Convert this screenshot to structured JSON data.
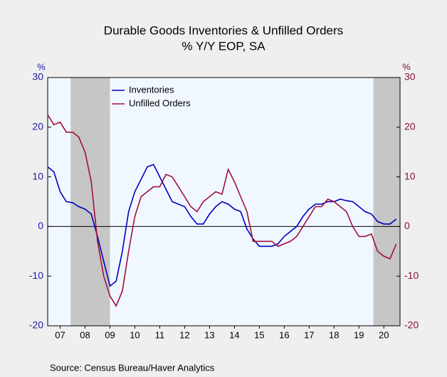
{
  "chart_data": {
    "type": "line",
    "title": "Durable Goods Inventories & Unfilled Orders",
    "subtitle": "% Y/Y   EOP, SA",
    "y_label": "%",
    "y2_label": "%",
    "source": "Source:  Census Bureau/Haver Analytics",
    "xlim": [
      2007.0,
      2021.15
    ],
    "xticks": [
      {
        "value": 2007.5,
        "label": "07"
      },
      {
        "value": 2008.5,
        "label": "08"
      },
      {
        "value": 2009.5,
        "label": "09"
      },
      {
        "value": 2010.5,
        "label": "10"
      },
      {
        "value": 2011.5,
        "label": "11"
      },
      {
        "value": 2012.5,
        "label": "12"
      },
      {
        "value": 2013.5,
        "label": "13"
      },
      {
        "value": 2014.5,
        "label": "14"
      },
      {
        "value": 2015.5,
        "label": "15"
      },
      {
        "value": 2016.5,
        "label": "16"
      },
      {
        "value": 2017.5,
        "label": "17"
      },
      {
        "value": 2018.5,
        "label": "18"
      },
      {
        "value": 2019.5,
        "label": "19"
      },
      {
        "value": 2020.5,
        "label": "20"
      }
    ],
    "ylim": [
      -20,
      30
    ],
    "yticks": [
      -20,
      -10,
      0,
      10,
      20,
      30
    ],
    "y2lim": [
      -20,
      30
    ],
    "y2ticks": [
      -20,
      -10,
      0,
      10,
      20,
      30
    ],
    "shaded_periods": [
      [
        2007.92,
        2009.5
      ],
      [
        2020.08,
        2021.15
      ]
    ],
    "x": [
      2007.0,
      2007.25,
      2007.5,
      2007.75,
      2008.0,
      2008.25,
      2008.5,
      2008.75,
      2009.0,
      2009.25,
      2009.5,
      2009.75,
      2010.0,
      2010.25,
      2010.5,
      2010.75,
      2011.0,
      2011.25,
      2011.5,
      2011.75,
      2012.0,
      2012.25,
      2012.5,
      2012.75,
      2013.0,
      2013.25,
      2013.5,
      2013.75,
      2014.0,
      2014.25,
      2014.5,
      2014.75,
      2015.0,
      2015.25,
      2015.5,
      2015.75,
      2016.0,
      2016.25,
      2016.5,
      2016.75,
      2017.0,
      2017.25,
      2017.5,
      2017.75,
      2018.0,
      2018.25,
      2018.5,
      2018.75,
      2019.0,
      2019.25,
      2019.5,
      2019.75,
      2020.0,
      2020.25,
      2020.5,
      2020.75,
      2021.0
    ],
    "series": [
      {
        "name": "Inventories",
        "color": "#0000c0",
        "axis": "y",
        "values": [
          12,
          11,
          7,
          5,
          4.8,
          4,
          3.5,
          2.5,
          -2,
          -7,
          -12,
          -11,
          -5,
          3,
          7,
          9.5,
          12,
          12.5,
          10,
          7.5,
          5,
          4.5,
          4,
          2,
          0.5,
          0.5,
          2.5,
          4,
          5,
          4.5,
          3.5,
          3,
          -0.5,
          -2.5,
          -4,
          -4,
          -4,
          -3.5,
          -2,
          -1,
          0,
          2,
          3.5,
          4.5,
          4.5,
          5,
          5,
          5.5,
          5.2,
          5,
          4,
          3,
          2.5,
          1,
          0.5,
          0.5,
          1.5
        ]
      },
      {
        "name": "Unfilled Orders",
        "color": "#a0103a",
        "axis": "y2",
        "values": [
          22.5,
          20.5,
          21,
          19,
          19,
          18,
          15,
          9,
          -3,
          -10,
          -14,
          -16,
          -13,
          -5,
          2,
          6,
          7,
          8,
          8,
          10.5,
          10,
          8,
          6,
          4,
          3,
          5,
          6,
          7,
          6.5,
          11.5,
          9,
          6,
          3,
          -3,
          -3,
          -3,
          -3,
          -4,
          -3.5,
          -3,
          -2,
          0,
          2,
          4,
          4,
          5.5,
          5,
          4,
          3,
          0,
          -2,
          -2,
          -1.5,
          -5,
          -6,
          -6.5,
          -3.5
        ]
      }
    ]
  }
}
